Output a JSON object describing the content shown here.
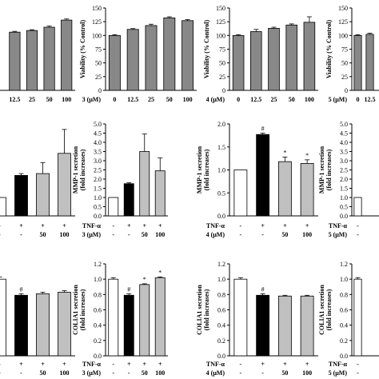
{
  "chart_data": [
    {
      "id": "r0c0",
      "type": "bar",
      "ylabel": "",
      "ylim": [
        0,
        150
      ],
      "yticks": [],
      "categories": [
        "",
        "12.5",
        "25",
        "50",
        "100"
      ],
      "values": [
        null,
        106,
        109,
        115,
        128
      ],
      "errors": [
        0,
        1.5,
        1.5,
        2,
        2
      ],
      "fills": [
        "#888888",
        "#888888",
        "#888888",
        "#888888",
        "#888888"
      ],
      "marks": [
        "",
        "",
        "",
        "",
        ""
      ],
      "row_labels": [],
      "row_cells": []
    },
    {
      "id": "r0c1",
      "type": "bar",
      "ylabel": "Viability (% Control)",
      "ylim": [
        0,
        150
      ],
      "yticks": [
        "0",
        "25",
        "50",
        "75",
        "100",
        "125",
        "150"
      ],
      "categories": [
        "0",
        "12.5",
        "25",
        "50",
        "100"
      ],
      "values": [
        100,
        111,
        118,
        132,
        127
      ],
      "errors": [
        1.5,
        1.5,
        2.5,
        2,
        2
      ],
      "fills": [
        "#888888",
        "#888888",
        "#888888",
        "#888888",
        "#888888"
      ],
      "marks": [
        "",
        "",
        "",
        "",
        ""
      ],
      "row_labels": [
        "3 (μM)"
      ],
      "row_cells": []
    },
    {
      "id": "r0c2",
      "type": "bar",
      "ylabel": "Viability (% Control)",
      "ylim": [
        0,
        150
      ],
      "yticks": [
        "0",
        "25",
        "50",
        "75",
        "100",
        "125",
        "150"
      ],
      "categories": [
        "0",
        "12.5",
        "25",
        "50",
        "100"
      ],
      "values": [
        100,
        107,
        113,
        119,
        124
      ],
      "errors": [
        1.5,
        4,
        2,
        2,
        10
      ],
      "fills": [
        "#888888",
        "#888888",
        "#888888",
        "#888888",
        "#888888"
      ],
      "marks": [
        "",
        "",
        "",
        "",
        ""
      ],
      "row_labels": [
        "4 (μM)"
      ],
      "row_cells": []
    },
    {
      "id": "r0c3",
      "type": "bar",
      "ylabel": "Viability (% Control)",
      "ylim": [
        0,
        150
      ],
      "yticks": [
        "0",
        "25",
        "50",
        "75",
        "100",
        "125",
        "150"
      ],
      "categories": [
        "0",
        "12.5"
      ],
      "values": [
        100,
        102
      ],
      "errors": [
        1.5,
        2
      ],
      "fills": [
        "#888888",
        "#888888"
      ],
      "marks": [
        "",
        ""
      ],
      "row_labels": [
        "5 (μM)"
      ],
      "row_cells": []
    },
    {
      "id": "r1c0",
      "type": "bar",
      "ylabel": "",
      "ylim": [
        0,
        5
      ],
      "yticks": [],
      "categories": [
        "",
        "",
        "",
        ""
      ],
      "values": [
        1.0,
        2.2,
        2.3,
        3.4
      ],
      "errors": [
        0,
        0.1,
        0.6,
        1.3
      ],
      "fills": [
        "#ffffff",
        "#000000",
        "#c0c0c0",
        "#c0c0c0"
      ],
      "marks": [
        "",
        "",
        "",
        ""
      ],
      "row_labels": [],
      "row_cells": [
        [
          "-",
          "+",
          "+",
          "+"
        ],
        [
          "-",
          "-",
          "50",
          "100"
        ]
      ]
    },
    {
      "id": "r1c1",
      "type": "bar",
      "ylabel": "MMP-1 secretion (fold increases)",
      "ylim": [
        0,
        5
      ],
      "yticks": [
        "0.0",
        "0.5",
        "1.0",
        "1.5",
        "2.0",
        "2.5",
        "3.0",
        "3.5",
        "4.0",
        "4.5",
        "5.0"
      ],
      "categories": [
        "",
        "",
        "",
        ""
      ],
      "values": [
        1.0,
        1.75,
        3.5,
        2.45
      ],
      "errors": [
        0,
        0.05,
        0.95,
        0.7
      ],
      "fills": [
        "#ffffff",
        "#000000",
        "#c0c0c0",
        "#c0c0c0"
      ],
      "marks": [
        "",
        "",
        "",
        ""
      ],
      "row_labels": [
        "TNF-α",
        "3 (μM)"
      ],
      "row_cells": [
        [
          "-",
          "+",
          "+",
          "+"
        ],
        [
          "-",
          "-",
          "50",
          "100"
        ]
      ]
    },
    {
      "id": "r1c2",
      "type": "bar",
      "ylabel": "MMP-1 secretion (fold increases)",
      "ylim": [
        0,
        2
      ],
      "yticks": [
        "0.0",
        "0.5",
        "1.0",
        "1.5",
        "2.0"
      ],
      "categories": [
        "",
        "",
        "",
        ""
      ],
      "values": [
        1.0,
        1.77,
        1.18,
        1.14
      ],
      "errors": [
        0,
        0.03,
        0.1,
        0.08
      ],
      "fills": [
        "#ffffff",
        "#000000",
        "#c0c0c0",
        "#c0c0c0"
      ],
      "marks": [
        "",
        "#",
        "*",
        "*"
      ],
      "row_labels": [
        "TNF-α",
        "4 (μM)"
      ],
      "row_cells": [
        [
          "-",
          "+",
          "+",
          "+"
        ],
        [
          "-",
          "-",
          "50",
          "100"
        ]
      ]
    },
    {
      "id": "r1c3",
      "type": "bar",
      "ylabel": "MMP-1 secretion (fold increases)",
      "ylim": [
        0,
        5
      ],
      "yticks": [
        "0.0",
        "0.5",
        "1.0",
        "1.5",
        "2.0",
        "2.5",
        "3.0",
        "3.5",
        "4.0",
        "4.5",
        "5.0"
      ],
      "categories": [
        ""
      ],
      "values": [
        1.0
      ],
      "errors": [
        0
      ],
      "fills": [
        "#ffffff"
      ],
      "marks": [
        ""
      ],
      "row_labels": [
        "TNF-α",
        "5 (μM)"
      ],
      "row_cells": [
        [
          "-"
        ],
        [
          "-"
        ]
      ]
    },
    {
      "id": "r2c0",
      "type": "bar",
      "ylabel": "",
      "ylim": [
        0,
        1.2
      ],
      "yticks": [],
      "categories": [
        "",
        "",
        "",
        ""
      ],
      "values": [
        1.0,
        0.79,
        0.81,
        0.83
      ],
      "errors": [
        0.03,
        0.02,
        0.02,
        0.02
      ],
      "fills": [
        "#ffffff",
        "#000000",
        "#c0c0c0",
        "#c0c0c0"
      ],
      "marks": [
        "",
        "#",
        "",
        ""
      ],
      "row_labels": [],
      "row_cells": [
        [
          "-",
          "+",
          "+",
          "+"
        ],
        [
          "-",
          "-",
          "50",
          "100"
        ]
      ]
    },
    {
      "id": "r2c1",
      "type": "bar",
      "ylabel": "COLIA1 secretion (fold increases)",
      "ylim": [
        0,
        1.2
      ],
      "yticks": [
        "0.0",
        "0.2",
        "0.4",
        "0.6",
        "0.8",
        "1.0",
        "1.2"
      ],
      "categories": [
        "",
        "",
        "",
        ""
      ],
      "values": [
        1.0,
        0.79,
        0.93,
        1.02
      ],
      "errors": [
        0.02,
        0.02,
        0.01,
        0.01
      ],
      "fills": [
        "#ffffff",
        "#000000",
        "#c0c0c0",
        "#c0c0c0"
      ],
      "marks": [
        "",
        "#",
        "*",
        "*"
      ],
      "row_labels": [
        "TNF-α",
        "3 (μM)"
      ],
      "row_cells": [
        [
          "-",
          "+",
          "+",
          "+"
        ],
        [
          "-",
          "-",
          "50",
          "100"
        ]
      ]
    },
    {
      "id": "r2c2",
      "type": "bar",
      "ylabel": "COLIA1 secretion (fold increases)",
      "ylim": [
        0,
        1.2
      ],
      "yticks": [
        "0.0",
        "0.2",
        "0.4",
        "0.6",
        "0.8",
        "1.0",
        "1.2"
      ],
      "categories": [
        "",
        "",
        "",
        ""
      ],
      "values": [
        1.0,
        0.79,
        0.78,
        0.78
      ],
      "errors": [
        0.02,
        0.02,
        0.01,
        0.01
      ],
      "fills": [
        "#ffffff",
        "#000000",
        "#c0c0c0",
        "#c0c0c0"
      ],
      "marks": [
        "",
        "#",
        "",
        ""
      ],
      "row_labels": [
        "TNF-α",
        "4 (μM)"
      ],
      "row_cells": [
        [
          "-",
          "+",
          "+",
          "+"
        ],
        [
          "-",
          "-",
          "50",
          "100"
        ]
      ]
    },
    {
      "id": "r2c3",
      "type": "bar",
      "ylabel": "COLIA1 secretion (fold increases)",
      "ylim": [
        0,
        1.2
      ],
      "yticks": [
        "0.0",
        "0.2",
        "0.4",
        "0.6",
        "0.8",
        "1.0",
        "1.2"
      ],
      "categories": [
        ""
      ],
      "values": [
        1.0
      ],
      "errors": [
        0.02
      ],
      "fills": [
        "#ffffff"
      ],
      "marks": [
        ""
      ],
      "row_labels": [
        "TNF-α",
        "5 (μM)"
      ],
      "row_cells": [
        [
          "-"
        ],
        [
          "-"
        ]
      ]
    }
  ]
}
